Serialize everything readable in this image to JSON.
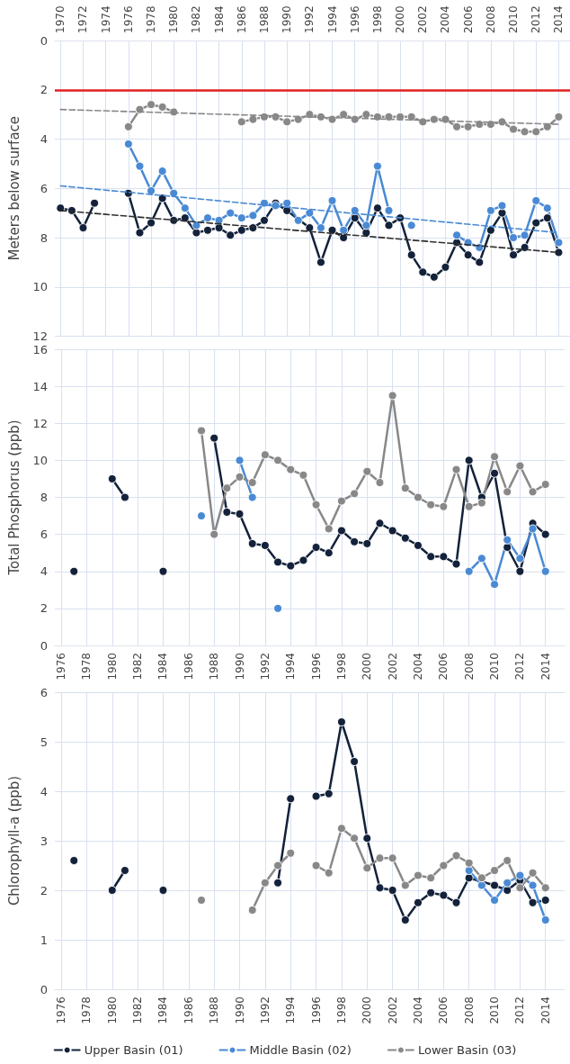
{
  "chart_data": [
    {
      "type": "line",
      "ylabel": "Meters below surface",
      "xlim": [
        1969.5,
        2015
      ],
      "ylim": [
        12,
        0
      ],
      "xticks": [
        1970,
        1972,
        1974,
        1976,
        1978,
        1980,
        1982,
        1984,
        1986,
        1988,
        1990,
        1992,
        1994,
        1996,
        1998,
        2000,
        2002,
        2004,
        2006,
        2008,
        2010,
        2012,
        2014
      ],
      "yticks": [
        0,
        2,
        4,
        6,
        8,
        10,
        12
      ],
      "grid": true,
      "legend": false,
      "marker": "circle",
      "line_style": "solid",
      "ref_lines": [
        {
          "axis": "y",
          "value": 2,
          "color": "#e02020"
        }
      ],
      "series": [
        {
          "color": "#13223a",
          "x": [
            1970,
            1971,
            1972,
            1973,
            1974,
            1975,
            1976,
            1977,
            1978,
            1979,
            1980,
            1981,
            1982,
            1983,
            1984,
            1985,
            1986,
            1987,
            1988,
            1989,
            1990,
            1992,
            1993,
            1994,
            1995,
            1996,
            1997,
            1998,
            1999,
            2000,
            2001,
            2002,
            2003,
            2004,
            2005,
            2006,
            2007,
            2008,
            2009,
            2010,
            2011,
            2012,
            2013,
            2014
          ],
          "values": [
            6.8,
            6.9,
            7.6,
            6.6,
            null,
            null,
            6.2,
            7.8,
            7.4,
            6.4,
            7.3,
            7.2,
            7.8,
            7.7,
            7.6,
            7.9,
            7.7,
            7.6,
            7.3,
            6.6,
            6.9,
            7.6,
            9.0,
            7.7,
            8.0,
            7.2,
            7.8,
            6.8,
            7.5,
            7.2,
            8.7,
            9.4,
            9.6,
            9.2,
            8.2,
            8.7,
            9.0,
            7.7,
            7.0,
            8.7,
            8.4,
            7.4,
            7.2,
            8.6
          ]
        },
        {
          "color": "#4a8ad4",
          "x": [
            1976,
            1977,
            1978,
            1979,
            1980,
            1981,
            1982,
            1983,
            1984,
            1985,
            1986,
            1987,
            1988,
            1989,
            1990,
            1991,
            1992,
            1993,
            1994,
            1995,
            1996,
            1997,
            1998,
            1999,
            2000,
            2001,
            2002,
            2003,
            2004,
            2005,
            2006,
            2007,
            2008,
            2009,
            2010,
            2011,
            2012,
            2013,
            2014
          ],
          "values": [
            4.2,
            5.1,
            6.1,
            5.3,
            6.2,
            6.8,
            7.5,
            7.2,
            7.3,
            7.0,
            7.2,
            7.1,
            6.6,
            6.7,
            6.6,
            7.3,
            7.0,
            7.6,
            6.5,
            7.7,
            6.9,
            7.5,
            5.1,
            6.9,
            null,
            7.5,
            null,
            null,
            null,
            7.9,
            8.2,
            8.4,
            6.9,
            6.7,
            8.0,
            7.9,
            6.5,
            6.8,
            8.2
          ]
        },
        {
          "color": "#888888",
          "x": [
            1976,
            1977,
            1978,
            1979,
            1980,
            1981,
            1982,
            1983,
            1984,
            1985,
            1986,
            1987,
            1988,
            1989,
            1990,
            1991,
            1992,
            1993,
            1994,
            1995,
            1996,
            1997,
            1998,
            1999,
            2000,
            2001,
            2002,
            2003,
            2004,
            2005,
            2006,
            2007,
            2008,
            2009,
            2010,
            2011,
            2012,
            2013,
            2014
          ],
          "values": [
            3.5,
            2.8,
            2.6,
            2.7,
            2.9,
            null,
            null,
            null,
            null,
            null,
            3.3,
            3.2,
            3.1,
            3.1,
            3.3,
            3.2,
            3.0,
            3.1,
            3.2,
            3.0,
            3.2,
            3.0,
            3.1,
            3.1,
            3.1,
            3.1,
            3.3,
            3.2,
            3.2,
            3.5,
            3.5,
            3.4,
            3.4,
            3.3,
            3.6,
            3.7,
            3.7,
            3.5,
            3.1
          ]
        },
        {
          "type": "line",
          "color": "#2e2e2e",
          "line_style": "dashed",
          "marker": "none",
          "x": [
            1970,
            2014
          ],
          "values": [
            6.9,
            8.6
          ]
        },
        {
          "type": "line",
          "color": "#4a8ad4",
          "line_style": "dashed",
          "marker": "none",
          "x": [
            1970,
            2014
          ],
          "values": [
            5.9,
            7.8
          ]
        },
        {
          "type": "line",
          "color": "#888888",
          "line_style": "dashed",
          "marker": "none",
          "x": [
            1970,
            2014
          ],
          "values": [
            2.8,
            3.4
          ]
        }
      ]
    },
    {
      "type": "line",
      "ylabel": "Total Phosphorus (ppb)",
      "xlim": [
        1975.5,
        2015.5
      ],
      "ylim": [
        0,
        16
      ],
      "xticks": [
        1976,
        1978,
        1980,
        1982,
        1984,
        1986,
        1988,
        1990,
        1992,
        1994,
        1996,
        1998,
        2000,
        2002,
        2004,
        2006,
        2008,
        2010,
        2012,
        2014
      ],
      "yticks": [
        0,
        2,
        4,
        6,
        8,
        10,
        12,
        14,
        16
      ],
      "grid": true,
      "legend": false,
      "marker": "circle",
      "line_style": "solid",
      "series": [
        {
          "color": "#13223a",
          "x": [
            1977,
            1978,
            1979,
            1980,
            1981,
            1982,
            1983,
            1984,
            1985,
            1986,
            1987,
            1988,
            1989,
            1990,
            1991,
            1992,
            1993,
            1994,
            1995,
            1996,
            1997,
            1998,
            1999,
            2000,
            2001,
            2002,
            2003,
            2004,
            2005,
            2006,
            2007,
            2008,
            2009,
            2010,
            2011,
            2012,
            2013,
            2014
          ],
          "values": [
            4,
            null,
            null,
            9,
            8,
            null,
            null,
            4,
            null,
            null,
            null,
            11.2,
            7.2,
            7.1,
            5.5,
            5.4,
            4.5,
            4.3,
            4.6,
            5.3,
            5.0,
            6.2,
            5.6,
            5.5,
            6.6,
            6.2,
            5.8,
            5.4,
            4.8,
            4.8,
            4.4,
            10,
            8,
            9.3,
            5.3,
            4,
            6.6,
            6
          ]
        },
        {
          "color": "#4a8ad4",
          "x": [
            1987,
            1988,
            1990,
            1991,
            1992,
            1993,
            1994,
            2008,
            2009,
            2010,
            2011,
            2012,
            2013,
            2014
          ],
          "values": [
            7,
            null,
            10,
            8,
            null,
            2,
            null,
            4,
            4.7,
            3.3,
            5.7,
            4.7,
            6.3,
            4
          ]
        },
        {
          "color": "#888888",
          "x": [
            1987,
            1988,
            1989,
            1990,
            1991,
            1992,
            1993,
            1994,
            1995,
            1996,
            1997,
            1998,
            1999,
            2000,
            2001,
            2002,
            2003,
            2004,
            2005,
            2006,
            2007,
            2008,
            2009,
            2010,
            2011,
            2012,
            2013,
            2014
          ],
          "values": [
            11.6,
            6,
            8.5,
            9.1,
            8.8,
            10.3,
            10,
            9.5,
            9.2,
            7.6,
            6.3,
            7.8,
            8.2,
            9.4,
            8.8,
            13.5,
            8.5,
            8,
            7.6,
            7.5,
            9.5,
            7.5,
            7.7,
            10.2,
            8.3,
            9.7,
            8.3,
            8.7
          ]
        }
      ]
    },
    {
      "type": "line",
      "ylabel": "Chlorophyll-a (ppb)",
      "xlim": [
        1975.5,
        2015.5
      ],
      "ylim": [
        0,
        6
      ],
      "xticks": [
        1976,
        1978,
        1980,
        1982,
        1984,
        1986,
        1988,
        1990,
        1992,
        1994,
        1996,
        1998,
        2000,
        2002,
        2004,
        2006,
        2008,
        2010,
        2012,
        2014
      ],
      "yticks": [
        0,
        1,
        2,
        3,
        4,
        5,
        6
      ],
      "grid": true,
      "legend": "bottom",
      "marker": "circle",
      "line_style": "solid",
      "series": [
        {
          "name": "Upper Basin (01)",
          "color": "#13223a",
          "x": [
            1977,
            1978,
            1980,
            1981,
            1982,
            1984,
            1985,
            1993,
            1994,
            1995,
            1996,
            1997,
            1998,
            1999,
            2000,
            2001,
            2002,
            2003,
            2004,
            2005,
            2006,
            2007,
            2008,
            2010,
            2011,
            2012,
            2013,
            2014
          ],
          "values": [
            2.6,
            null,
            2,
            2.4,
            null,
            2,
            null,
            2.15,
            3.85,
            null,
            3.9,
            3.95,
            5.4,
            4.6,
            3.05,
            2.05,
            2,
            1.4,
            1.75,
            1.95,
            1.9,
            1.75,
            2.25,
            2.1,
            2,
            2.2,
            1.75,
            1.8
          ]
        },
        {
          "name": "Middle Basin (02)",
          "color": "#4a8ad4",
          "x": [
            2008,
            2009,
            2010,
            2011,
            2012,
            2013,
            2014
          ],
          "values": [
            2.4,
            2.1,
            1.8,
            2.15,
            2.3,
            2.1,
            1.4
          ]
        },
        {
          "name": "Lower Basin (03)",
          "color": "#888888",
          "x": [
            1987,
            1988,
            1991,
            1992,
            1993,
            1994,
            1995,
            1996,
            1997,
            1998,
            1999,
            2000,
            2001,
            2002,
            2003,
            2004,
            2005,
            2006,
            2007,
            2008,
            2009,
            2010,
            2011,
            2012,
            2013,
            2014
          ],
          "values": [
            1.8,
            null,
            1.6,
            2.15,
            2.5,
            2.75,
            null,
            2.5,
            2.35,
            3.25,
            3.05,
            2.45,
            2.65,
            2.65,
            2.1,
            2.3,
            2.25,
            2.5,
            2.7,
            2.55,
            2.25,
            2.4,
            2.6,
            2.05,
            2.35,
            2.05
          ]
        }
      ]
    }
  ]
}
